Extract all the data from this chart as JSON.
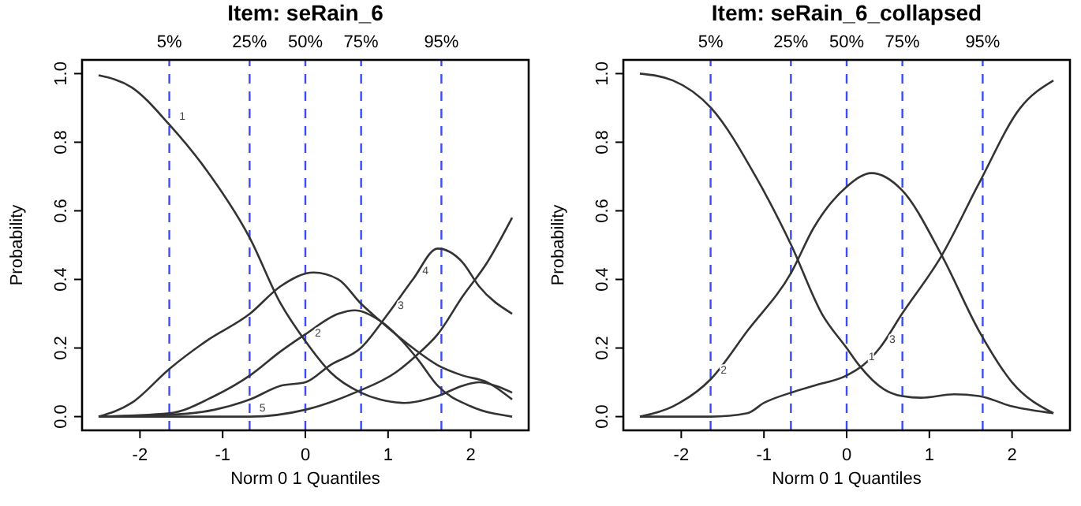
{
  "chart_data": [
    {
      "type": "line",
      "title": "Item:  seRain_6",
      "xlabel": "Norm 0 1 Quantiles",
      "ylabel": "Probability",
      "xlim": [
        -2.7,
        2.7
      ],
      "ylim": [
        -0.04,
        1.04
      ],
      "xticks": [
        -2,
        -1,
        0,
        1,
        2
      ],
      "yticks": [
        {
          "value": 0,
          "label": "0.0"
        },
        {
          "value": 0.2,
          "label": "0.2"
        },
        {
          "value": 0.4,
          "label": "0.4"
        },
        {
          "value": 0.6,
          "label": "0.6"
        },
        {
          "value": 0.8,
          "label": "0.8"
        },
        {
          "value": 1,
          "label": "1.0"
        }
      ],
      "grid": false,
      "line_style": "solid",
      "marker": "none",
      "ref_lines": [
        {
          "axis": "x",
          "value": -1.645,
          "color": "#3b4cf5",
          "line_style": "dashed"
        },
        {
          "axis": "x",
          "value": -0.674,
          "color": "#3b4cf5",
          "line_style": "dashed"
        },
        {
          "axis": "x",
          "value": 0,
          "color": "#3b4cf5",
          "line_style": "dashed"
        },
        {
          "axis": "x",
          "value": 0.674,
          "color": "#3b4cf5",
          "line_style": "dashed"
        },
        {
          "axis": "x",
          "value": 1.645,
          "color": "#3b4cf5",
          "line_style": "dashed"
        }
      ],
      "annotations": [
        "5%",
        "25%",
        "50%",
        "75%",
        "95%",
        {
          "text": "1",
          "x": -1.64,
          "y": 0.85
        },
        {
          "text": "2",
          "x": 0,
          "y": 0.22
        },
        {
          "text": "3",
          "x": 1.0,
          "y": 0.3
        },
        {
          "text": "4",
          "x": 1.3,
          "y": 0.4
        },
        {
          "text": "5",
          "x": -0.67,
          "y": 0.0
        }
      ],
      "series": [
        {
          "color": "#333333",
          "x": [
            -2.5,
            -2.1,
            -1.64,
            -1.2,
            -0.67,
            -0.3,
            0,
            0.3,
            0.67,
            0.9,
            1.2,
            1.6,
            1.9,
            2.1,
            2.3,
            2.5
          ],
          "values": [
            0.995,
            0.96,
            0.85,
            0.72,
            0.52,
            0.33,
            0.22,
            0.13,
            0.07,
            0.05,
            0.04,
            0.06,
            0.09,
            0.1,
            0.09,
            0.07
          ]
        },
        {
          "color": "#333333",
          "x": [
            -2.5,
            -2.1,
            -1.64,
            -1.2,
            -0.67,
            -0.3,
            0.1,
            0.4,
            0.67,
            0.9,
            1.3,
            1.6,
            1.9,
            2.2,
            2.5
          ],
          "values": [
            0.0,
            0.04,
            0.14,
            0.22,
            0.3,
            0.38,
            0.42,
            0.4,
            0.33,
            0.28,
            0.2,
            0.15,
            0.12,
            0.1,
            0.05
          ]
        },
        {
          "color": "#333333",
          "x": [
            -2.5,
            -1.64,
            -1.1,
            -0.67,
            -0.3,
            0,
            0.4,
            0.6,
            0.9,
            1.35,
            1.6,
            2.0,
            2.5
          ],
          "values": [
            0.0,
            0.01,
            0.06,
            0.12,
            0.19,
            0.24,
            0.3,
            0.31,
            0.28,
            0.17,
            0.09,
            0.03,
            0.0
          ]
        },
        {
          "color": "#333333",
          "x": [
            -2.5,
            -1.64,
            -1.1,
            -0.67,
            -0.3,
            0,
            0.3,
            0.67,
            1.0,
            1.3,
            1.6,
            1.9,
            2.1,
            2.5
          ],
          "values": [
            0.0,
            0.005,
            0.02,
            0.05,
            0.09,
            0.1,
            0.15,
            0.2,
            0.3,
            0.4,
            0.49,
            0.45,
            0.38,
            0.3
          ]
        },
        {
          "color": "#333333",
          "x": [
            -2.5,
            -1.64,
            -0.67,
            0,
            0.6,
            1.1,
            1.35,
            1.6,
            1.9,
            2.2,
            2.5
          ],
          "values": [
            0.0,
            0.0,
            0.0,
            0.02,
            0.07,
            0.13,
            0.18,
            0.24,
            0.35,
            0.45,
            0.58
          ]
        }
      ]
    },
    {
      "type": "line",
      "title": "Item:  seRain_6_collapsed",
      "xlabel": "Norm 0 1 Quantiles",
      "ylabel": "Probability",
      "xlim": [
        -2.7,
        2.7
      ],
      "ylim": [
        -0.04,
        1.04
      ],
      "xticks": [
        -2,
        -1,
        0,
        1,
        2
      ],
      "yticks": [
        {
          "value": 0,
          "label": "0.0"
        },
        {
          "value": 0.2,
          "label": "0.2"
        },
        {
          "value": 0.4,
          "label": "0.4"
        },
        {
          "value": 0.6,
          "label": "0.6"
        },
        {
          "value": 0.8,
          "label": "0.8"
        },
        {
          "value": 1,
          "label": "1.0"
        }
      ],
      "grid": false,
      "line_style": "solid",
      "marker": "none",
      "ref_lines": [
        {
          "axis": "x",
          "value": -1.645,
          "color": "#3b4cf5",
          "line_style": "dashed"
        },
        {
          "axis": "x",
          "value": -0.674,
          "color": "#3b4cf5",
          "line_style": "dashed"
        },
        {
          "axis": "x",
          "value": 0,
          "color": "#3b4cf5",
          "line_style": "dashed"
        },
        {
          "axis": "x",
          "value": 0.674,
          "color": "#3b4cf5",
          "line_style": "dashed"
        },
        {
          "axis": "x",
          "value": 1.645,
          "color": "#3b4cf5",
          "line_style": "dashed"
        }
      ],
      "annotations": [
        "5%",
        "25%",
        "50%",
        "75%",
        "95%",
        {
          "text": "2",
          "x": -1.64,
          "y": 0.11
        },
        {
          "text": "1",
          "x": 0.15,
          "y": 0.15
        },
        {
          "text": "3",
          "x": 0.4,
          "y": 0.2
        }
      ],
      "series": [
        {
          "color": "#333333",
          "x": [
            -2.5,
            -2.1,
            -1.64,
            -1.1,
            -0.67,
            -0.3,
            0,
            0.15,
            0.45,
            0.67,
            0.9,
            1.3,
            1.6,
            2.0,
            2.5
          ],
          "values": [
            1.0,
            0.98,
            0.9,
            0.7,
            0.5,
            0.3,
            0.2,
            0.15,
            0.08,
            0.06,
            0.055,
            0.065,
            0.06,
            0.03,
            0.01
          ]
        },
        {
          "color": "#333333",
          "x": [
            -2.5,
            -2.1,
            -1.64,
            -1.2,
            -0.67,
            -0.4,
            0,
            0.3,
            0.67,
            1.15,
            1.6,
            2.0,
            2.5
          ],
          "values": [
            0.0,
            0.03,
            0.11,
            0.25,
            0.42,
            0.55,
            0.67,
            0.71,
            0.66,
            0.47,
            0.25,
            0.1,
            0.01
          ]
        },
        {
          "color": "#333333",
          "x": [
            -2.5,
            -1.64,
            -1.2,
            -1.0,
            -0.67,
            -0.4,
            0,
            0.2,
            0.4,
            0.67,
            1.15,
            1.6,
            2.1,
            2.5
          ],
          "values": [
            0.0,
            0.0,
            0.01,
            0.04,
            0.07,
            0.09,
            0.12,
            0.15,
            0.2,
            0.3,
            0.47,
            0.68,
            0.9,
            0.98
          ]
        }
      ]
    }
  ]
}
